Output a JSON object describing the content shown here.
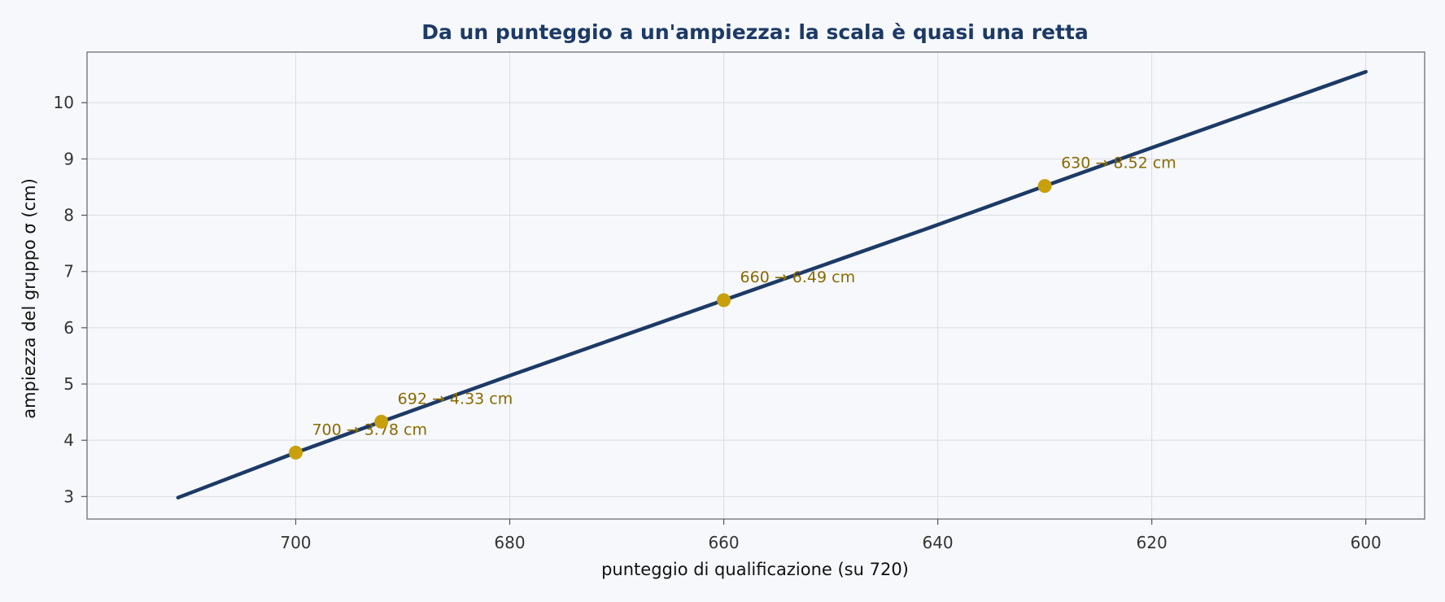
{
  "chart_data": {
    "type": "line",
    "title": "Da un punteggio a un'ampiezza: la scala è quasi una retta",
    "xlabel": "punteggio di qualificazione (su 720)",
    "ylabel": "ampiezza del gruppo σ (cm)",
    "xlim": [
      719.5,
      594.5
    ],
    "ylim": [
      2.6,
      10.9
    ],
    "x_reversed": true,
    "grid": true,
    "xticks": [
      700,
      680,
      660,
      640,
      620,
      600
    ],
    "yticks": [
      3,
      4,
      5,
      6,
      7,
      8,
      9,
      10
    ],
    "series": [
      {
        "x": [
          711,
          700,
          692,
          680,
          660,
          640,
          630,
          620,
          600
        ],
        "y": [
          2.98,
          3.78,
          4.33,
          5.15,
          6.49,
          7.83,
          8.52,
          9.2,
          10.55
        ],
        "color": "#1d3a66"
      }
    ],
    "points": [
      {
        "x": 700,
        "y": 3.78,
        "label": "700 → 3.78 cm"
      },
      {
        "x": 692,
        "y": 4.33,
        "label": "692 → 4.33 cm"
      },
      {
        "x": 660,
        "y": 6.49,
        "label": "660 → 6.49 cm"
      },
      {
        "x": 630,
        "y": 8.52,
        "label": "630 → 8.52 cm"
      }
    ],
    "colors": {
      "line": "#1d3a66",
      "marker": "#c9a00c",
      "annotation": "#8a6a00",
      "title": "#1d3a66"
    }
  }
}
